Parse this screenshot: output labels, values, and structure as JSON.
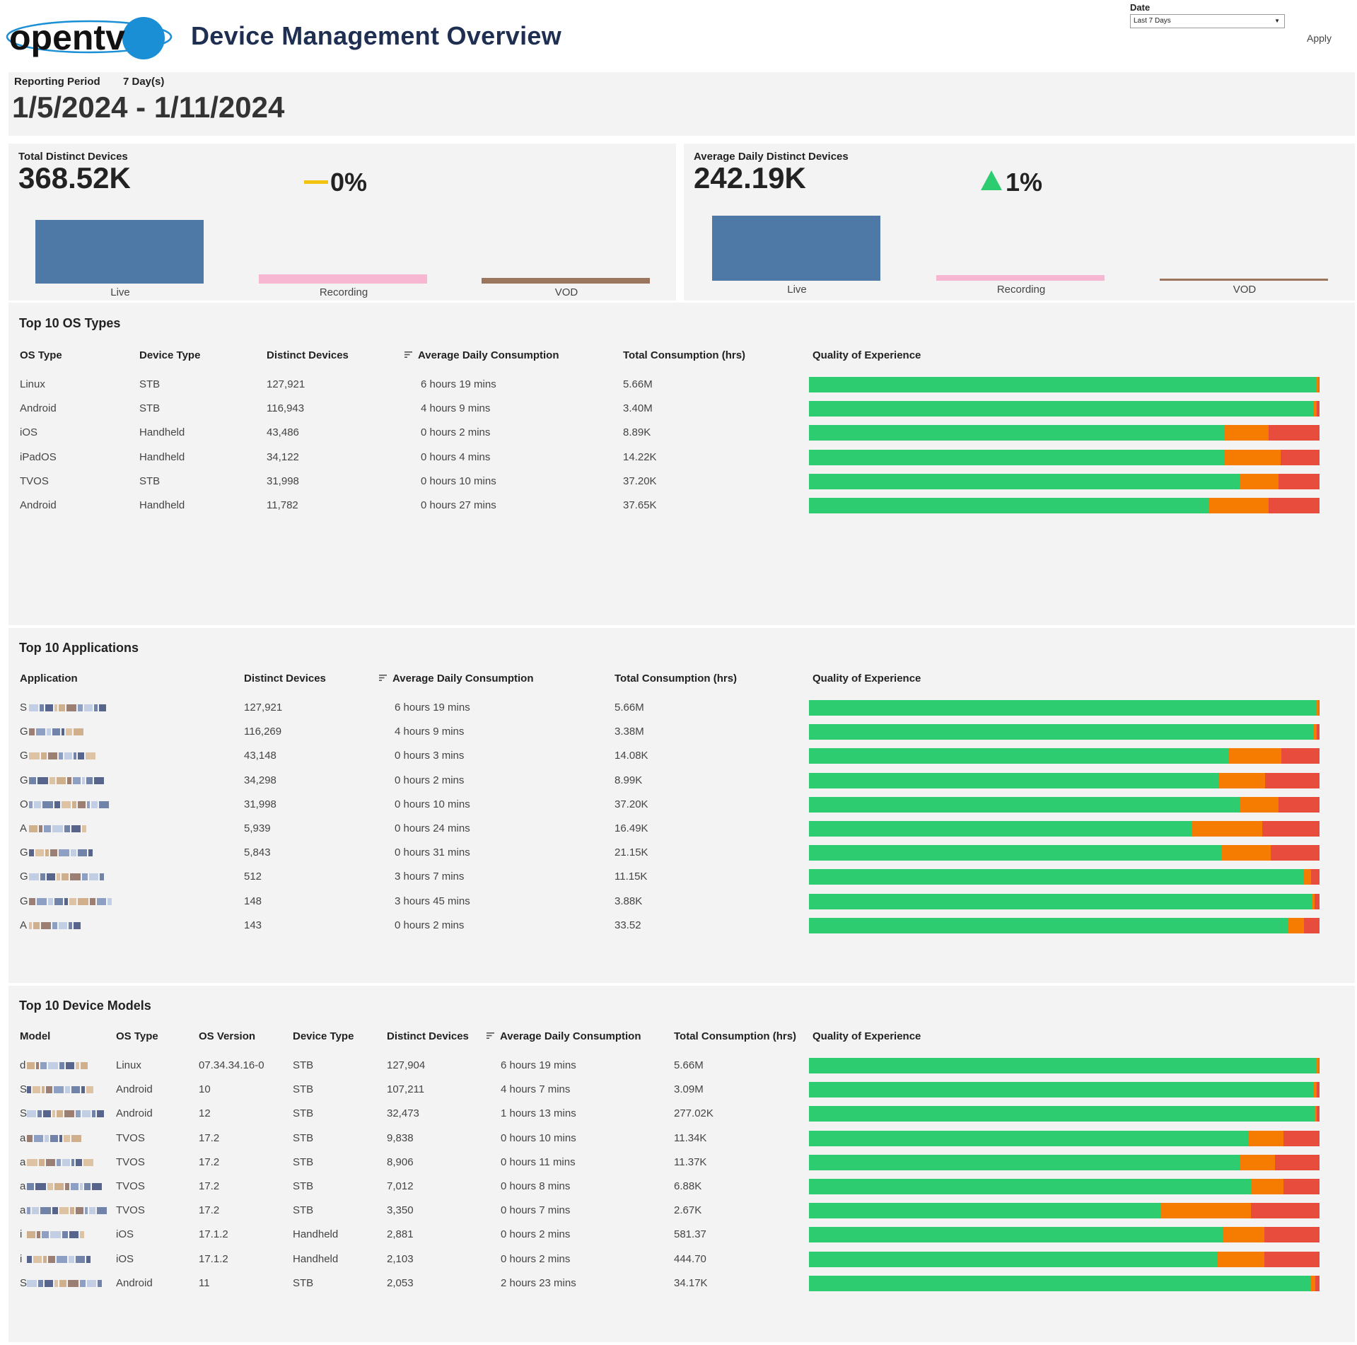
{
  "header": {
    "logo_text": "opentv",
    "title": "Device Management Overview",
    "date_label": "Date",
    "date_value": "Last 7 Days",
    "apply_label": "Apply"
  },
  "period": {
    "label": "Reporting Period",
    "days": "7 Day(s)",
    "range": "1/5/2024 - 1/11/2024"
  },
  "kpis": [
    {
      "title": "Total Distinct Devices",
      "value": "368.52K",
      "change": "0%",
      "trend": "flat",
      "bars": [
        {
          "label": "Live",
          "value": 100,
          "color": "#4e79a7"
        },
        {
          "label": "Recording",
          "value": 14,
          "color": "#f7b6d2"
        },
        {
          "label": "VOD",
          "value": 9,
          "color": "#9c755f"
        }
      ]
    },
    {
      "title": "Average Daily Distinct Devices",
      "value": "242.19K",
      "change": "1%",
      "trend": "up",
      "bars": [
        {
          "label": "Live",
          "value": 100,
          "color": "#4e79a7"
        },
        {
          "label": "Recording",
          "value": 9,
          "color": "#f7b6d2"
        },
        {
          "label": "VOD",
          "value": 3,
          "color": "#9c755f"
        }
      ]
    }
  ],
  "colors": {
    "good": "#2ecc71",
    "warn": "#f57c00",
    "bad": "#e74c3c",
    "up": "#2ecc71",
    "flat": "#f1c40f"
  },
  "os_table": {
    "title": "Top 10 OS Types",
    "headers": [
      "OS Type",
      "Device Type",
      "Distinct Devices",
      "Average Daily Consumption",
      "Total Consumption (hrs)",
      "Quality of Experience"
    ],
    "rows": [
      {
        "os": "Linux",
        "device": "STB",
        "devices": "127,921",
        "avg": "6 hours 19 mins",
        "total": "5.66M",
        "qoe": [
          99.5,
          0.3,
          0.2
        ]
      },
      {
        "os": "Android",
        "device": "STB",
        "devices": "116,943",
        "avg": "4 hours 9 mins",
        "total": "3.40M",
        "qoe": [
          98.8,
          0.6,
          0.6
        ]
      },
      {
        "os": "iOS",
        "device": "Handheld",
        "devices": "43,486",
        "avg": "0 hours 2 mins",
        "total": "8.89K",
        "qoe": [
          81.3,
          8.7,
          10.0
        ]
      },
      {
        "os": "iPadOS",
        "device": "Handheld",
        "devices": "34,122",
        "avg": "0 hours 4 mins",
        "total": "14.22K",
        "qoe": [
          81.4,
          11.0,
          7.6
        ]
      },
      {
        "os": "TVOS",
        "device": "STB",
        "devices": "31,998",
        "avg": "0 hours 10 mins",
        "total": "37.20K",
        "qoe": [
          84.5,
          7.5,
          8.0
        ]
      },
      {
        "os": "Android",
        "device": "Handheld",
        "devices": "11,782",
        "avg": "0 hours 27 mins",
        "total": "37.65K",
        "qoe": [
          78.3,
          11.7,
          10.0
        ]
      }
    ]
  },
  "app_table": {
    "title": "Top 10 Applications",
    "headers": [
      "Application",
      "Distinct Devices",
      "Average Daily Consumption",
      "Total Consumption (hrs)",
      "Quality of Experience"
    ],
    "rows": [
      {
        "app": "S",
        "devices": "127,921",
        "avg": "6 hours 19 mins",
        "total": "5.66M",
        "qoe": [
          99.5,
          0.3,
          0.2
        ]
      },
      {
        "app": "G",
        "devices": "116,269",
        "avg": "4 hours 9 mins",
        "total": "3.38M",
        "qoe": [
          98.8,
          0.6,
          0.6
        ]
      },
      {
        "app": "G",
        "devices": "43,148",
        "avg": "0 hours 3 mins",
        "total": "14.08K",
        "qoe": [
          82.2,
          10.3,
          7.5
        ]
      },
      {
        "app": "G",
        "devices": "34,298",
        "avg": "0 hours 2 mins",
        "total": "8.99K",
        "qoe": [
          80.4,
          9.0,
          10.6
        ]
      },
      {
        "app": "O",
        "devices": "31,998",
        "avg": "0 hours 10 mins",
        "total": "37.20K",
        "qoe": [
          84.5,
          7.5,
          8.0
        ]
      },
      {
        "app": "A",
        "devices": "5,939",
        "avg": "0 hours 24 mins",
        "total": "16.49K",
        "qoe": [
          75.0,
          13.8,
          11.2
        ]
      },
      {
        "app": "G",
        "devices": "5,843",
        "avg": "0 hours 31 mins",
        "total": "21.15K",
        "qoe": [
          80.8,
          9.6,
          9.6
        ]
      },
      {
        "app": "G",
        "devices": "512",
        "avg": "3 hours 7 mins",
        "total": "11.15K",
        "qoe": [
          97.0,
          1.4,
          1.6
        ]
      },
      {
        "app": "G",
        "devices": "148",
        "avg": "3 hours 45 mins",
        "total": "3.88K",
        "qoe": [
          98.6,
          0.4,
          1.0
        ]
      },
      {
        "app": "A",
        "devices": "143",
        "avg": "0 hours 2 mins",
        "total": "33.52",
        "qoe": [
          93.8,
          3.2,
          3.0
        ]
      }
    ]
  },
  "model_table": {
    "title": "Top 10 Device Models",
    "headers": [
      "Model",
      "OS Type",
      "OS Version",
      "Device Type",
      "Distinct Devices",
      "Average Daily Consumption",
      "Total Consumption (hrs)",
      "Quality of Experience"
    ],
    "rows": [
      {
        "model": "d",
        "os": "Linux",
        "ver": "07.34.34.16-0",
        "device": "STB",
        "devices": "127,904",
        "avg": "6 hours 19 mins",
        "total": "5.66M",
        "qoe": [
          99.5,
          0.3,
          0.2
        ]
      },
      {
        "model": "S",
        "os": "Android",
        "ver": "10",
        "device": "STB",
        "devices": "107,211",
        "avg": "4 hours 7 mins",
        "total": "3.09M",
        "qoe": [
          98.8,
          0.6,
          0.6
        ]
      },
      {
        "model": "S",
        "os": "Android",
        "ver": "12",
        "device": "STB",
        "devices": "32,473",
        "avg": "1 hours 13 mins",
        "total": "277.02K",
        "qoe": [
          99.0,
          0.5,
          0.5
        ]
      },
      {
        "model": "a",
        "os": "TVOS",
        "ver": "17.2",
        "device": "STB",
        "devices": "9,838",
        "avg": "0 hours 10 mins",
        "total": "11.34K",
        "qoe": [
          86.0,
          7.0,
          7.0
        ]
      },
      {
        "model": "a",
        "os": "TVOS",
        "ver": "17.2",
        "device": "STB",
        "devices": "8,906",
        "avg": "0 hours 11 mins",
        "total": "11.37K",
        "qoe": [
          84.5,
          6.8,
          8.7
        ]
      },
      {
        "model": "a",
        "os": "TVOS",
        "ver": "17.2",
        "device": "STB",
        "devices": "7,012",
        "avg": "0 hours 8 mins",
        "total": "6.88K",
        "qoe": [
          86.6,
          6.4,
          7.0
        ]
      },
      {
        "model": "a",
        "os": "TVOS",
        "ver": "17.2",
        "device": "STB",
        "devices": "3,350",
        "avg": "0 hours 7 mins",
        "total": "2.67K",
        "qoe": [
          69.0,
          17.6,
          13.4
        ]
      },
      {
        "model": "i",
        "os": "iOS",
        "ver": "17.1.2",
        "device": "Handheld",
        "devices": "2,881",
        "avg": "0 hours 2 mins",
        "total": "581.37",
        "qoe": [
          81.0,
          8.2,
          10.8
        ]
      },
      {
        "model": "i",
        "os": "iOS",
        "ver": "17.1.2",
        "device": "Handheld",
        "devices": "2,103",
        "avg": "0 hours 2 mins",
        "total": "444.70",
        "qoe": [
          80.0,
          9.2,
          10.8
        ]
      },
      {
        "model": "S",
        "os": "Android",
        "ver": "11",
        "device": "STB",
        "devices": "2,053",
        "avg": "2 hours 23 mins",
        "total": "34.17K",
        "qoe": [
          98.2,
          1.0,
          0.8
        ]
      }
    ]
  }
}
